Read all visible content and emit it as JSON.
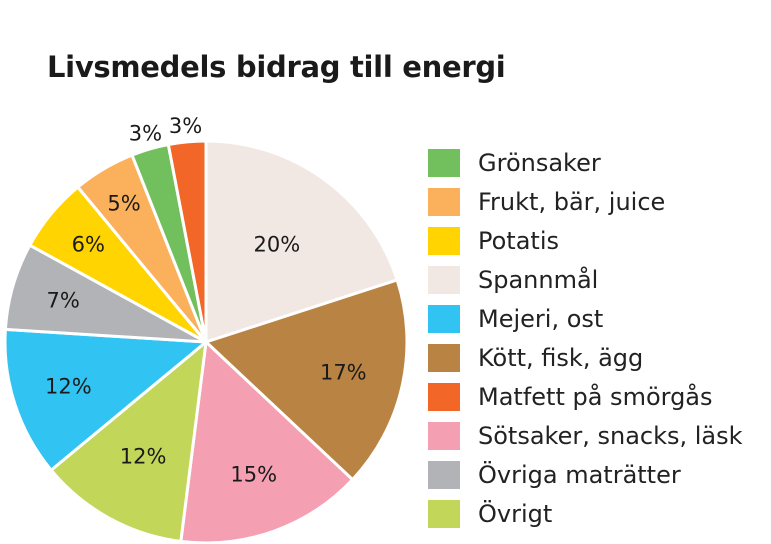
{
  "chart_data": {
    "type": "pie",
    "title": "Livsmedels bidrag till energi",
    "slices": [
      {
        "name": "Spannmål",
        "value": 20,
        "label": "20%",
        "color": "#F1E7E3"
      },
      {
        "name": "Kött, fisk, ägg",
        "value": 17,
        "label": "17%",
        "color": "#B98443"
      },
      {
        "name": "Sötsaker, snacks, läsk",
        "value": 15,
        "label": "15%",
        "color": "#F4A0B2"
      },
      {
        "name": "Övrigt",
        "value": 12,
        "label": "12%",
        "color": "#C2D75A"
      },
      {
        "name": "Mejeri, ost",
        "value": 12,
        "label": "12%",
        "color": "#31C4F3"
      },
      {
        "name": "Övriga maträtter",
        "value": 7,
        "label": "7%",
        "color": "#B1B3B6"
      },
      {
        "name": "Potatis",
        "value": 6,
        "label": "6%",
        "color": "#FFD400"
      },
      {
        "name": "Frukt, bär, juice",
        "value": 5,
        "label": "5%",
        "color": "#FBB05C"
      },
      {
        "name": "Grönsaker",
        "value": 3,
        "label": "3%",
        "color": "#72BF5E"
      },
      {
        "name": "Matfett på smörgås",
        "value": 3,
        "label": "3%",
        "color": "#F26628"
      }
    ],
    "legend": [
      {
        "label": "Grönsaker",
        "color": "#72BF5E"
      },
      {
        "label": "Frukt, bär, juice",
        "color": "#FBB05C"
      },
      {
        "label": "Potatis",
        "color": "#FFD400"
      },
      {
        "label": "Spannmål",
        "color": "#F1E7E3"
      },
      {
        "label": "Mejeri, ost",
        "color": "#31C4F3"
      },
      {
        "label": "Kött, fisk, ägg",
        "color": "#B98443"
      },
      {
        "label": "Matfett på smörgås",
        "color": "#F26628"
      },
      {
        "label": "Sötsaker, snacks, läsk",
        "color": "#F4A0B2"
      },
      {
        "label": "Övriga maträtter",
        "color": "#B1B3B6"
      },
      {
        "label": "Övrigt",
        "color": "#C2D75A"
      }
    ],
    "legend_placement": "right"
  }
}
